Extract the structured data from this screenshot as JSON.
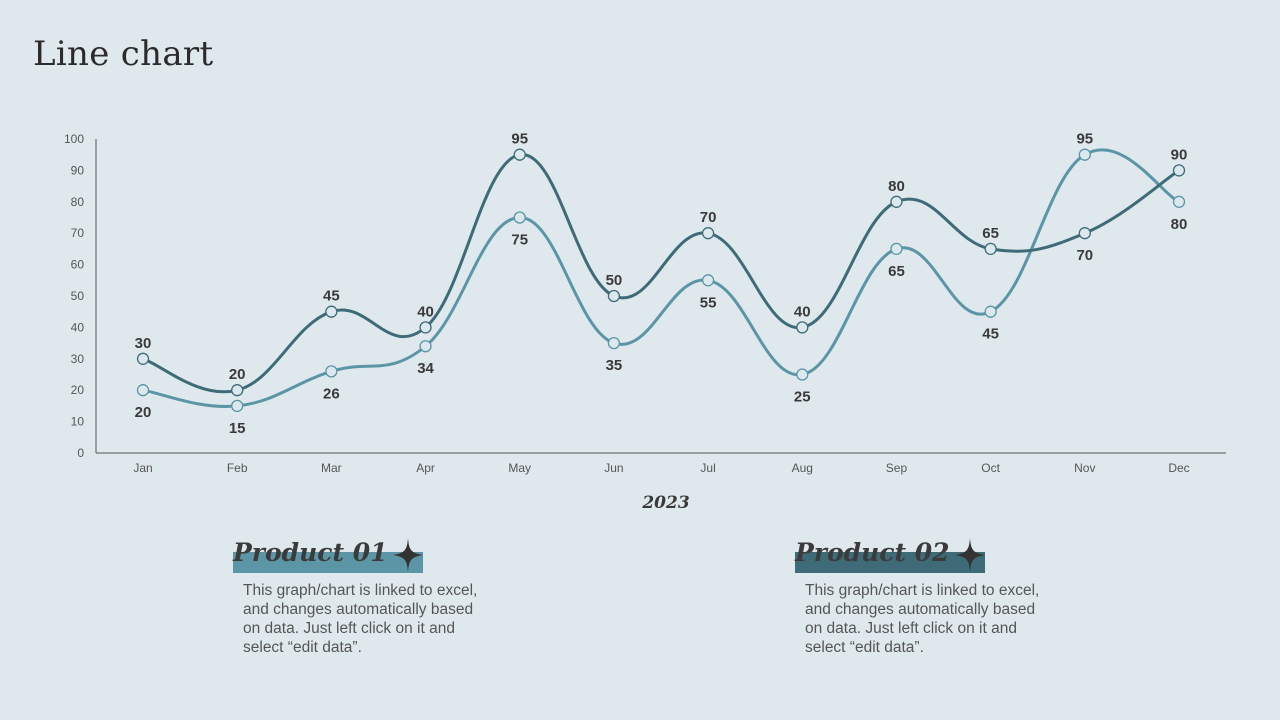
{
  "page": {
    "title": "Line chart"
  },
  "colors": {
    "background": "#dfe9ed",
    "series1": "#3f6b78",
    "series2": "#5b95a6",
    "marker_fill": "#dce8ee"
  },
  "chart_data": {
    "type": "line",
    "categories": [
      "Jan",
      "Feb",
      "Mar",
      "Apr",
      "May",
      "Jun",
      "Jul",
      "Aug",
      "Sep",
      "Oct",
      "Nov",
      "Dec"
    ],
    "series": [
      {
        "values": [
          30,
          20,
          45,
          40,
          95,
          50,
          70,
          40,
          80,
          65,
          70,
          90
        ]
      },
      {
        "values": [
          20,
          15,
          26,
          34,
          75,
          35,
          55,
          25,
          65,
          45,
          95,
          80
        ]
      }
    ],
    "xlabel": "2023",
    "ylabel": "",
    "ylim": [
      0,
      100
    ],
    "yticks": [
      0,
      10,
      20,
      30,
      40,
      50,
      60,
      70,
      80,
      90,
      100
    ],
    "grid": false,
    "data_labels": true
  },
  "products": [
    {
      "name": "Product 01",
      "description": "This graph/chart is linked to excel, and changes automatically based on data. Just left click on it and select “edit data”.",
      "icon": "four-point-star-icon"
    },
    {
      "name": "Product 02",
      "description": "This graph/chart is linked to excel, and changes automatically based on data. Just left click on it and select “edit data”.",
      "icon": "four-point-star-icon"
    }
  ]
}
